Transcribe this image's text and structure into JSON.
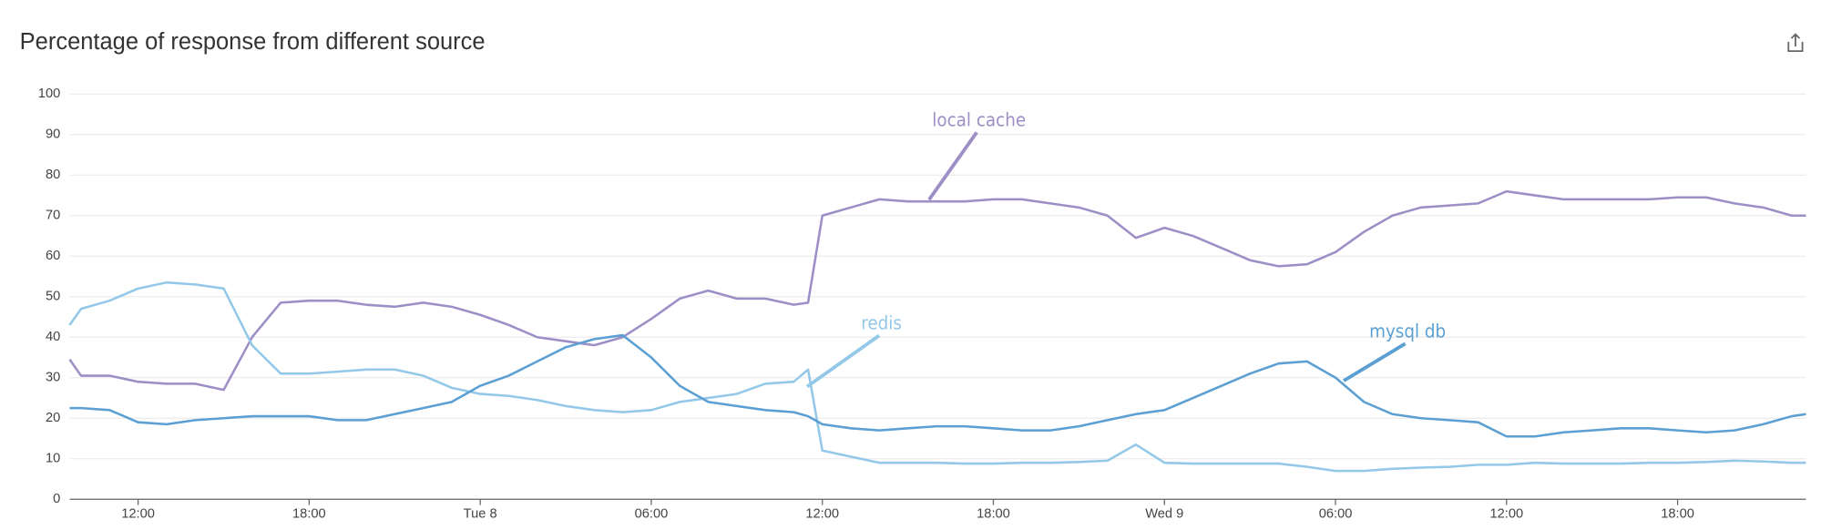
{
  "chart_data": {
    "type": "line",
    "title": "Percentage of response from different source",
    "x": [
      9.6,
      10,
      11,
      12,
      13,
      14,
      15,
      16,
      17,
      18,
      19,
      20,
      21,
      22,
      23,
      24,
      25,
      26,
      27,
      28,
      29,
      30,
      31,
      32,
      33,
      34,
      35,
      35.5,
      36,
      37,
      38,
      39,
      40,
      41,
      42,
      43,
      44,
      45,
      46,
      47,
      48,
      49,
      50,
      51,
      52,
      53,
      54,
      55,
      56,
      57,
      58,
      59,
      60,
      61,
      62,
      63,
      64,
      65,
      66,
      67,
      68,
      69,
      70,
      70.5
    ],
    "series": [
      {
        "name": "local cache",
        "color": "#9d8fc6",
        "values": [
          34.5,
          30.5,
          30.5,
          29,
          28.5,
          28.5,
          27,
          40,
          48.5,
          49,
          49,
          48,
          47.5,
          48.5,
          47.5,
          45.5,
          43,
          40,
          39,
          38,
          40,
          44.5,
          49.5,
          51.5,
          49.5,
          49.5,
          48,
          48.5,
          70,
          72,
          74,
          73.5,
          73.5,
          73.5,
          74,
          74,
          73,
          72,
          70,
          64.5,
          67,
          65,
          62,
          59,
          57.5,
          58,
          61,
          66,
          70,
          72,
          72.5,
          73,
          76,
          75,
          74,
          74,
          74,
          74,
          74.5,
          74.5,
          73,
          72,
          70,
          70
        ]
      },
      {
        "name": "redis",
        "color": "#93c8e8",
        "values": [
          43,
          47,
          49,
          52,
          53.5,
          53,
          52,
          38,
          31,
          31,
          31.5,
          32,
          32,
          30.5,
          27.5,
          26,
          25.5,
          24.5,
          23,
          22,
          21.5,
          22,
          24,
          25,
          26,
          28.5,
          29,
          32,
          12,
          10.5,
          9,
          9,
          9,
          8.8,
          8.8,
          9,
          9,
          9.2,
          9.5,
          13.5,
          9,
          8.8,
          8.8,
          8.8,
          8.8,
          8,
          7,
          7,
          7.5,
          7.8,
          8,
          8.5,
          8.5,
          9,
          8.8,
          8.8,
          8.8,
          9,
          9,
          9.2,
          9.5,
          9.3,
          9,
          9
        ]
      },
      {
        "name": "mysql db",
        "color": "#5b9fd3",
        "values": [
          22.5,
          22.5,
          22,
          19,
          18.5,
          19.5,
          20,
          20.5,
          20.5,
          20.5,
          19.5,
          19.5,
          21,
          22.5,
          24,
          28,
          30.5,
          34,
          37.5,
          39.5,
          40.5,
          35,
          28,
          24,
          23,
          22,
          21.5,
          20.5,
          18.5,
          17.5,
          17,
          17.5,
          18,
          18,
          17.5,
          17,
          17,
          18,
          19.5,
          21,
          22,
          25,
          28,
          31,
          33.5,
          34,
          30,
          24,
          21,
          20,
          19.5,
          19,
          15.5,
          15.5,
          16.5,
          17,
          17.5,
          17.5,
          17,
          16.5,
          17,
          18.5,
          20.5,
          21
        ]
      }
    ],
    "annotations": [
      "local cache",
      "redis",
      "mysql db"
    ],
    "xlim": [
      9.6,
      70.5
    ],
    "xticks": [
      {
        "value": 12,
        "label": "12:00"
      },
      {
        "value": 18,
        "label": "18:00"
      },
      {
        "value": 24,
        "label": "Tue 8"
      },
      {
        "value": 30,
        "label": "06:00"
      },
      {
        "value": 36,
        "label": "12:00"
      },
      {
        "value": 42,
        "label": "18:00"
      },
      {
        "value": 48,
        "label": "Wed 9"
      },
      {
        "value": 54,
        "label": "06:00"
      },
      {
        "value": 60,
        "label": "12:00"
      },
      {
        "value": 66,
        "label": "18:00"
      }
    ],
    "ylim": [
      0,
      100
    ],
    "yticks": [
      0,
      10,
      20,
      30,
      40,
      50,
      60,
      70,
      80,
      90,
      100
    ],
    "grid": true
  }
}
